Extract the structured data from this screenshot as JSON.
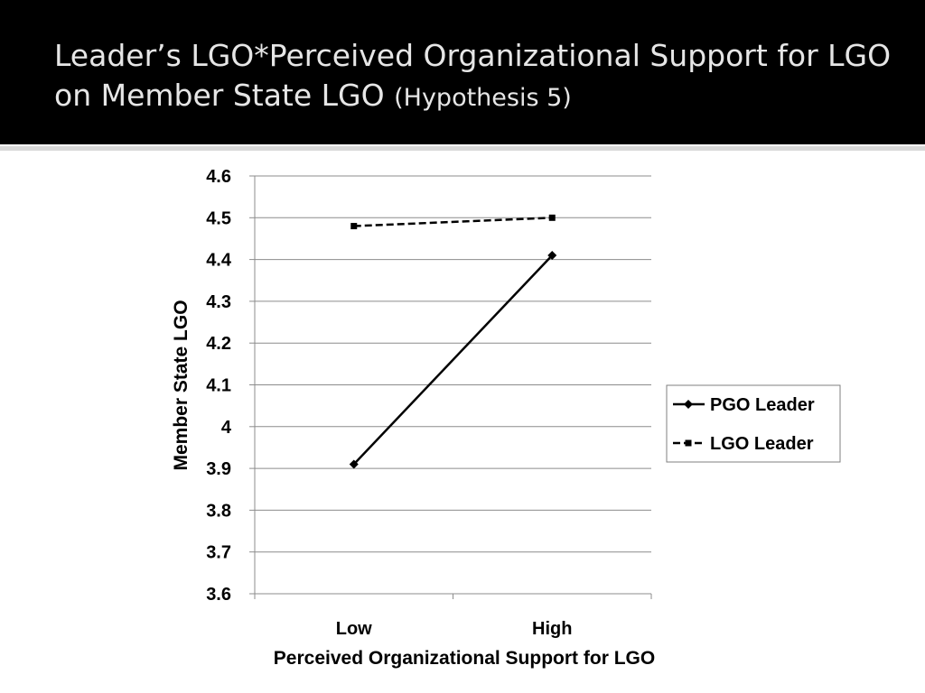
{
  "slide": {
    "title_main": "Leader’s LGO*Perceived Organizational Support for LGO on Member State LGO",
    "title_sub": "(Hypothesis 5)"
  },
  "chart_data": {
    "type": "line",
    "categories": [
      "Low",
      "High"
    ],
    "series": [
      {
        "name": "PGO Leader",
        "values": [
          3.91,
          4.41
        ],
        "line_style": "solid",
        "marker": "diamond",
        "color": "#000000"
      },
      {
        "name": "LGO Leader",
        "values": [
          4.48,
          4.5
        ],
        "line_style": "dashed",
        "marker": "square",
        "color": "#000000"
      }
    ],
    "title": "",
    "xlabel": "Perceived Organizational Support for LGO",
    "ylabel": "Member State LGO",
    "ylim": [
      3.6,
      4.6
    ],
    "yticks": [
      "4.6",
      "4.5",
      "4.4",
      "4.3",
      "4.2",
      "4.1",
      "4",
      "3.9",
      "3.8",
      "3.7",
      "3.6"
    ],
    "grid": "horizontal",
    "legend_position": "right"
  }
}
